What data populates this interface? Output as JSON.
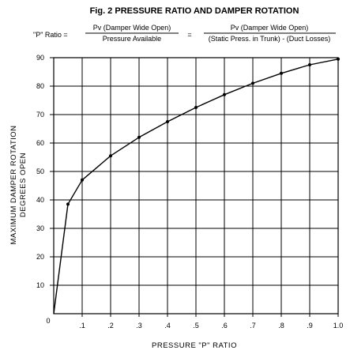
{
  "chart_data": {
    "type": "line",
    "title": "Fig. 2  PRESSURE RATIO AND DAMPER ROTATION",
    "formula": {
      "lhs": "\"P\" Ratio =",
      "frac1_num": "Pv (Damper Wide Open)",
      "frac1_den": "Pressure Available",
      "eq": "=",
      "frac2_num": "Pv (Damper Wide Open)",
      "frac2_den": "(Static Press. in Trunk) - (Duct Losses)"
    },
    "xlabel": "PRESSURE \"P\" RATIO",
    "ylabel_line1": "MAXIMUM DAMPER ROTATION",
    "ylabel_line2": "DEGREES OPEN",
    "xlim": [
      0,
      1.0
    ],
    "ylim": [
      0,
      90
    ],
    "x_ticks": [
      0.1,
      0.2,
      0.3,
      0.4,
      0.5,
      0.6,
      0.7,
      0.8,
      0.9,
      1.0
    ],
    "x_tick_labels": [
      ".1",
      ".2",
      ".3",
      ".4",
      ".5",
      ".6",
      ".7",
      ".8",
      ".9",
      "1.0"
    ],
    "origin_label": "0",
    "y_ticks": [
      10,
      20,
      30,
      40,
      50,
      60,
      70,
      80,
      90
    ],
    "y_tick_labels": [
      "10",
      "20",
      "30",
      "40",
      "50",
      "60",
      "70",
      "80",
      "90"
    ],
    "grid": true,
    "series": [
      {
        "x": [
          0.0,
          0.05,
          0.1,
          0.2,
          0.3,
          0.4,
          0.5,
          0.6,
          0.7,
          0.8,
          0.9,
          1.0
        ],
        "y": [
          0,
          38.5,
          47,
          55.5,
          62,
          67.5,
          72.5,
          77,
          81,
          84.5,
          87.5,
          89.5
        ],
        "markers": [
          0.05,
          0.1,
          0.2,
          0.3,
          0.4,
          0.5,
          0.6,
          0.7,
          0.8,
          0.9,
          1.0
        ]
      }
    ],
    "line_color": "#000000",
    "grid_color": "#000000"
  }
}
